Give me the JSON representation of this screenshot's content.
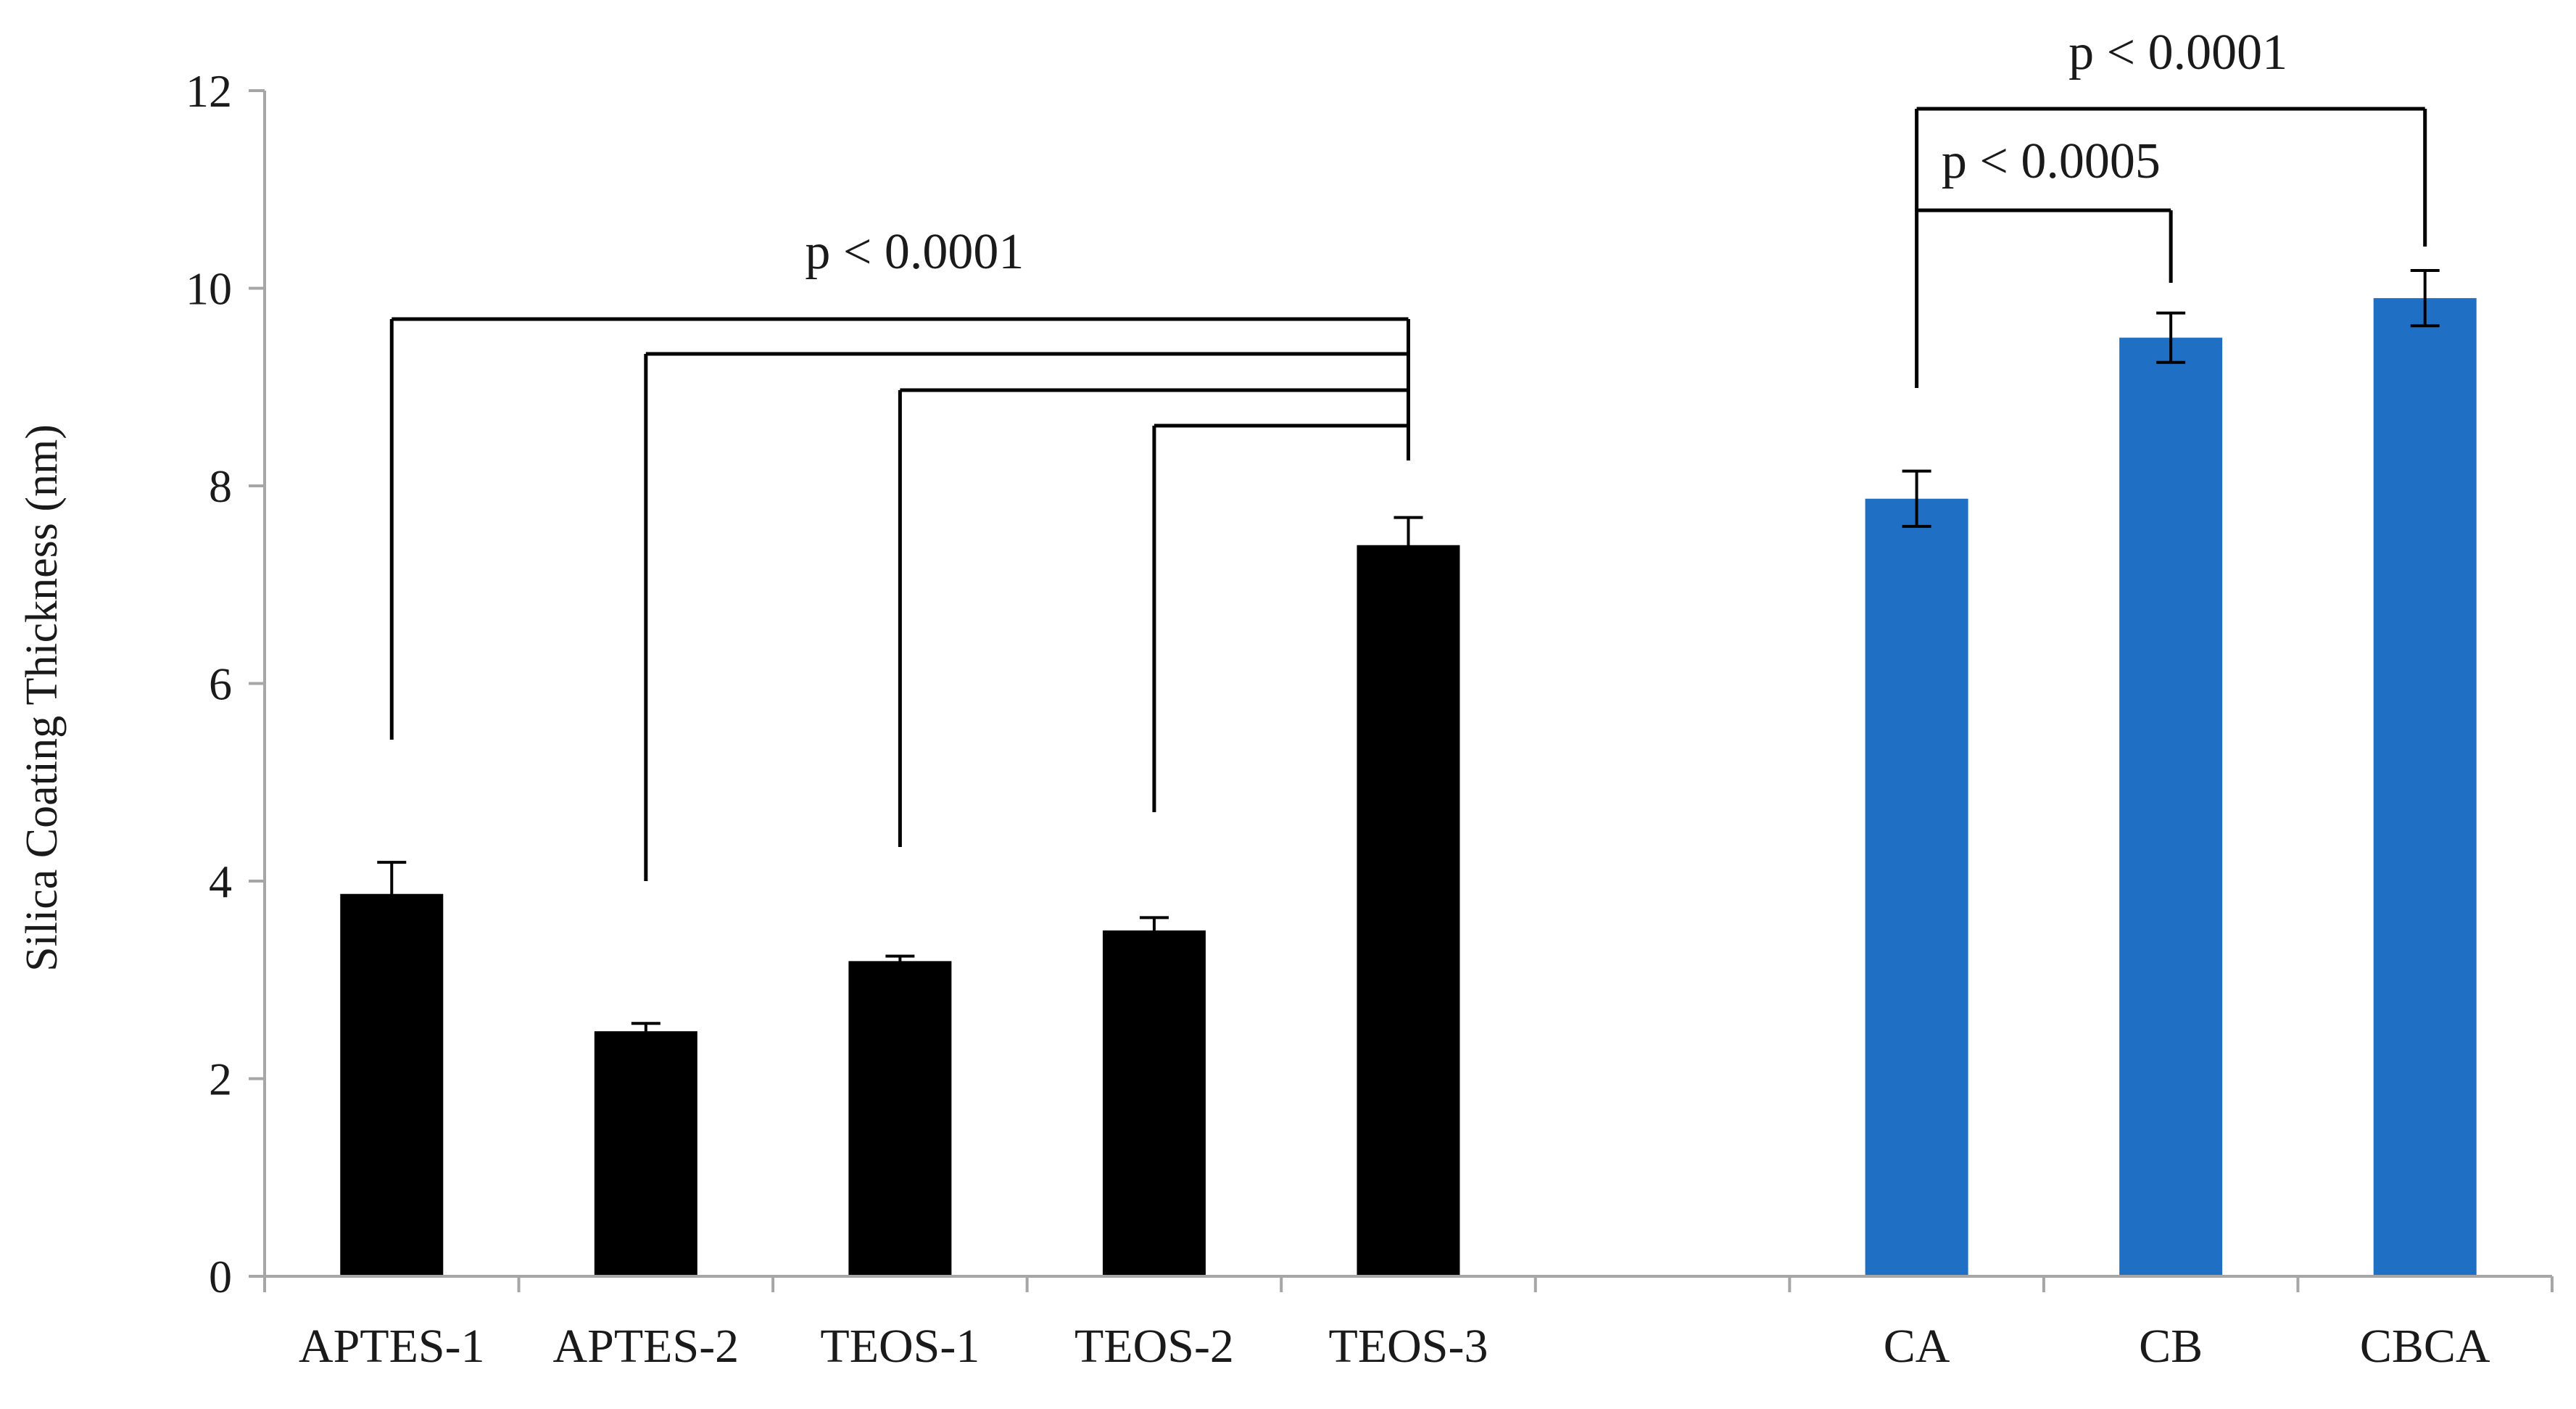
{
  "chart_data": {
    "type": "bar",
    "ylabel": "Silica Coating Thickness (nm)",
    "xlabel": "",
    "ylim": [
      0,
      12
    ],
    "yticks": [
      0,
      2,
      4,
      6,
      8,
      10,
      12
    ],
    "grid": false,
    "categories": [
      "APTES-1",
      "APTES-2",
      "TEOS-1",
      "TEOS-2",
      "TEOS-3",
      "",
      "CA",
      "CB",
      "CBCA"
    ],
    "values": [
      3.87,
      2.48,
      3.19,
      3.5,
      7.4,
      null,
      7.87,
      9.5,
      9.9
    ],
    "errors": [
      0.32,
      0.08,
      0.05,
      0.13,
      0.28,
      null,
      0.28,
      0.25,
      0.28
    ],
    "bar_colors": [
      "#000000",
      "#000000",
      "#000000",
      "#000000",
      "#000000",
      null,
      "#1f6fc5",
      "#1f6fc5",
      "#1f6fc5"
    ],
    "annotations": [
      {
        "id": "left",
        "label": "p < 0.0001",
        "target": 4,
        "from": [
          0,
          1,
          2,
          3
        ]
      },
      {
        "id": "ca-cb",
        "label": "p < 0.0005",
        "target": 7,
        "from": [
          6
        ]
      },
      {
        "id": "ca-cbca",
        "label": "p < 0.0001",
        "target": 8,
        "from": [
          6
        ]
      }
    ]
  },
  "colors": {
    "axis": "#a6a6a6",
    "black_bar": "#000000",
    "blue_bar": "#1f6fc5",
    "bracket": "#000000"
  }
}
